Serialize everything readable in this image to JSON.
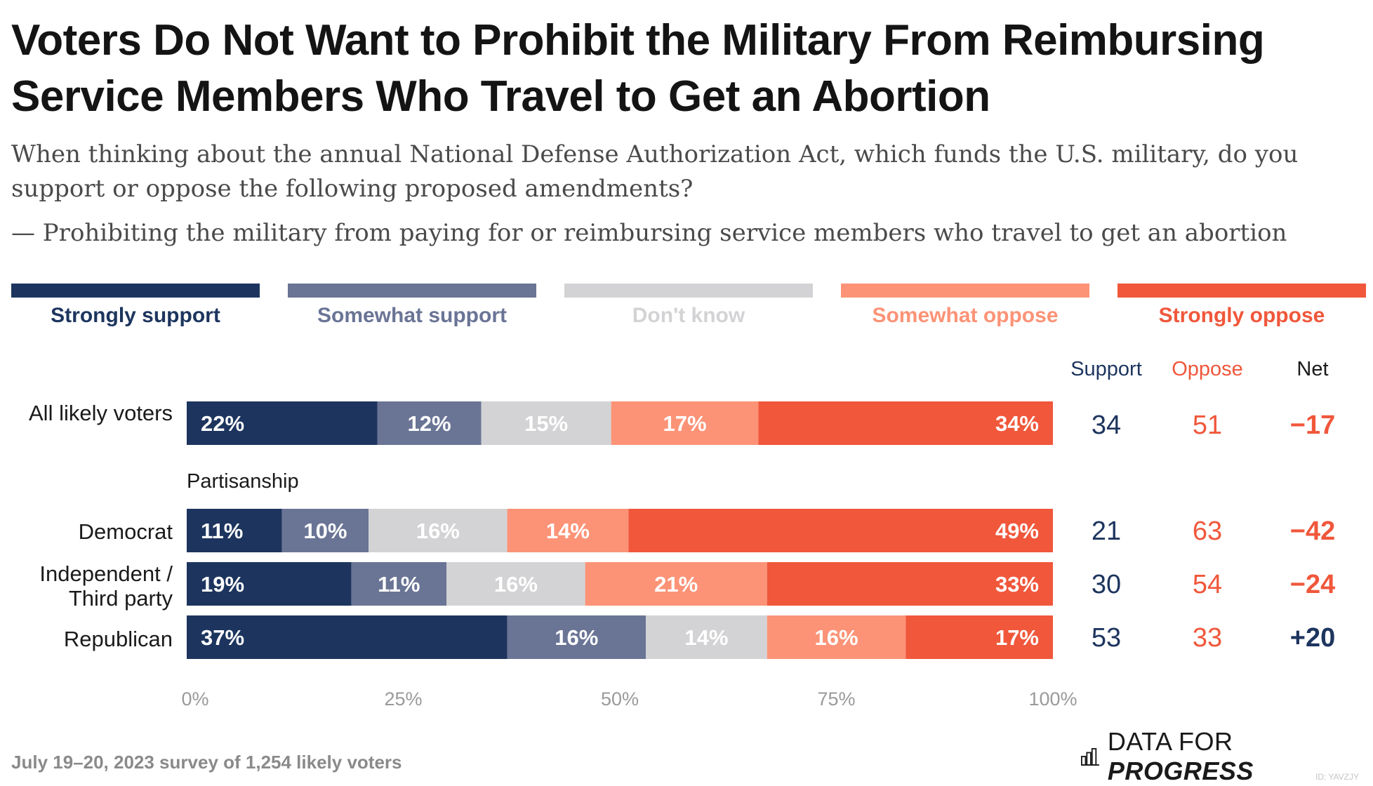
{
  "title": "Voters Do Not Want to Prohibit the Military From Reimbursing Service Members Who Travel to Get an Abortion",
  "subtitle": "When thinking about the annual National Defense Authorization Act, which funds the U.S. military, do you support or oppose the following proposed amendments?",
  "subtitle2": "— Prohibiting the military from paying for or reimbursing service members who travel to get an abortion",
  "legend": [
    {
      "label": "Strongly support",
      "color": "#1d355e"
    },
    {
      "label": "Somewhat support",
      "color": "#6a7495"
    },
    {
      "label": "Don't know",
      "color": "#d3d3d5"
    },
    {
      "label": "Somewhat oppose",
      "color": "#fc9377"
    },
    {
      "label": "Strongly oppose",
      "color": "#f0573b"
    }
  ],
  "columns": {
    "support": "Support",
    "oppose": "Oppose",
    "net": "Net"
  },
  "section_label": "Partisanship",
  "colors": {
    "support_text": "#1d355e",
    "oppose_text": "#f0573b",
    "net_negative": "#f0573b",
    "net_positive": "#1d355e",
    "label_dark": "#ffffff",
    "label_light": "#ffffff"
  },
  "chart_data": {
    "type": "bar",
    "orientation": "horizontal",
    "stacked": true,
    "categories": [
      "All likely voters",
      "Democrat",
      "Independent / Third party",
      "Republican"
    ],
    "series": [
      {
        "name": "Strongly support",
        "values": [
          22,
          11,
          19,
          37
        ]
      },
      {
        "name": "Somewhat support",
        "values": [
          12,
          10,
          11,
          16
        ]
      },
      {
        "name": "Don't know",
        "values": [
          15,
          16,
          16,
          14
        ]
      },
      {
        "name": "Somewhat oppose",
        "values": [
          17,
          14,
          21,
          16
        ]
      },
      {
        "name": "Strongly oppose",
        "values": [
          34,
          49,
          33,
          17
        ]
      }
    ],
    "support": [
      "34",
      "21",
      "30",
      "53"
    ],
    "oppose": [
      "51",
      "63",
      "54",
      "33"
    ],
    "net": [
      "−17",
      "−42",
      "−24",
      "+20"
    ],
    "xlim": [
      0,
      100
    ],
    "x_ticks": [
      "0%",
      "25%",
      "50%",
      "75%",
      "100%"
    ],
    "legend_position": "top"
  },
  "footer": {
    "survey_note": "July 19–20, 2023 survey of 1,254 likely voters",
    "brand_light": "DATA FOR ",
    "brand_bold": "PROGRESS",
    "image_id": "ID: YAVZJY"
  }
}
